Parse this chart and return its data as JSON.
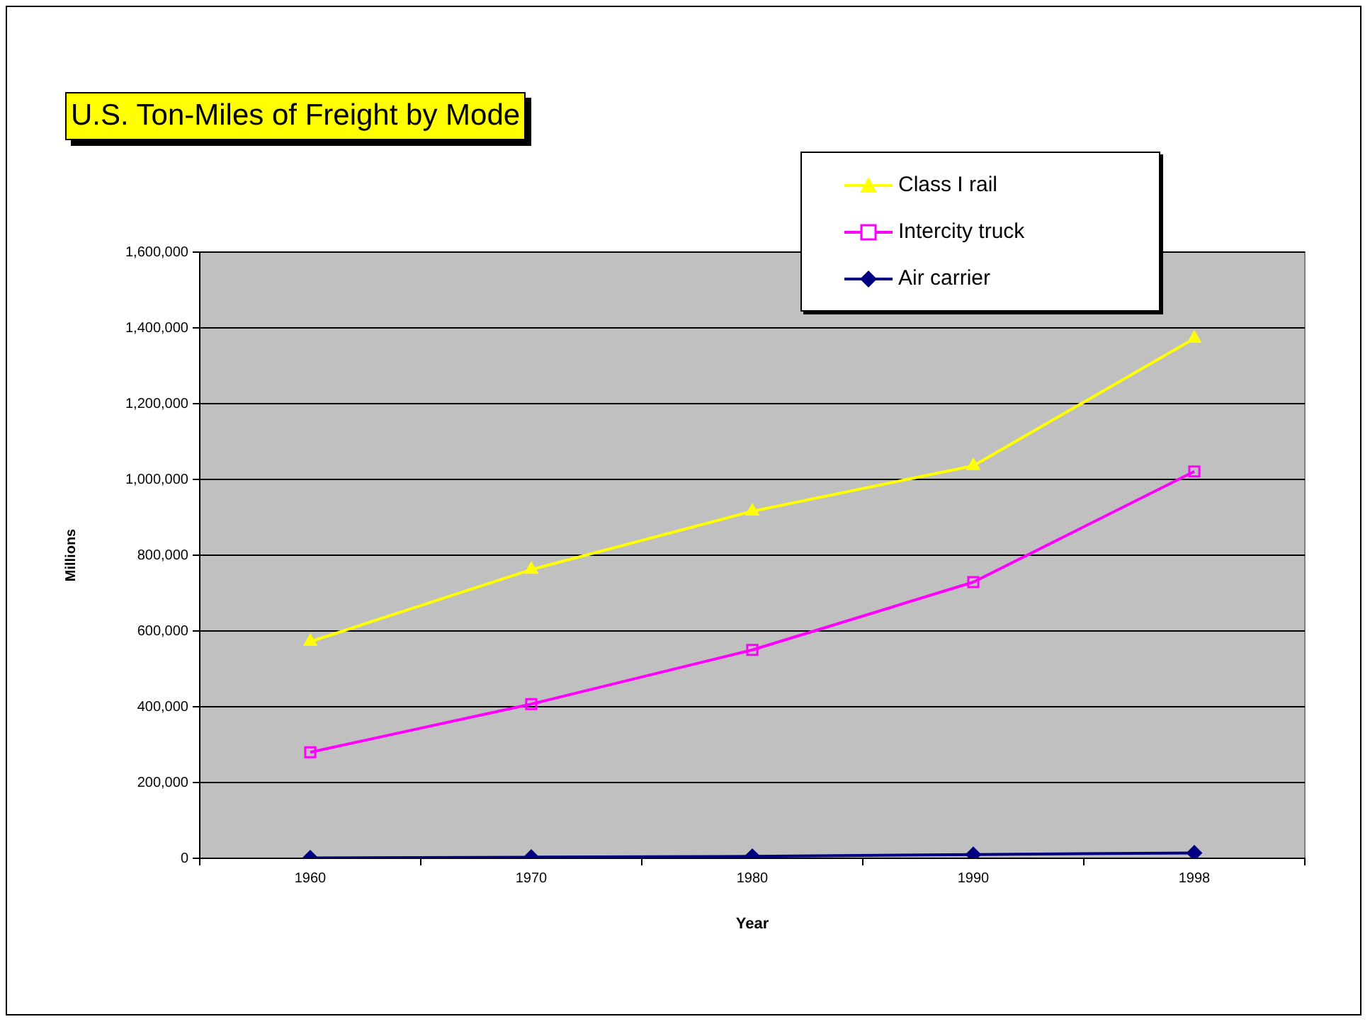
{
  "chart_data": {
    "type": "line",
    "title": "U.S. Ton-Miles of Freight by Mode",
    "xlabel": "Year",
    "ylabel": "Millions",
    "categories": [
      "1960",
      "1970",
      "1980",
      "1990",
      "1998"
    ],
    "series": [
      {
        "name": "Class I rail",
        "color": "#ffff00",
        "marker": "triangle",
        "values": [
          572000,
          762000,
          916000,
          1036000,
          1372000
        ]
      },
      {
        "name": "Intercity truck",
        "color": "#ff00ff",
        "marker": "square",
        "values": [
          280000,
          407000,
          550000,
          729000,
          1021000
        ]
      },
      {
        "name": "Air carrier",
        "color": "#000080",
        "marker": "diamond",
        "values": [
          1000,
          3000,
          5000,
          10000,
          14000
        ]
      }
    ],
    "ylim": [
      0,
      1600000
    ],
    "yticks": [
      0,
      {
        "value": 200000,
        "label": "200,000"
      },
      {
        "value": 400000,
        "label": "400,000"
      },
      {
        "value": 600000,
        "label": "600,000"
      },
      {
        "value": 800000,
        "label": "800,000"
      },
      {
        "value": 1000000,
        "label": "1,000,000"
      },
      {
        "value": 1200000,
        "label": "1,200,000"
      },
      {
        "value": 1400000,
        "label": "1,400,000"
      },
      {
        "value": 1600000,
        "label": "1,600,000"
      }
    ],
    "grid": "y",
    "legend": "top right"
  }
}
